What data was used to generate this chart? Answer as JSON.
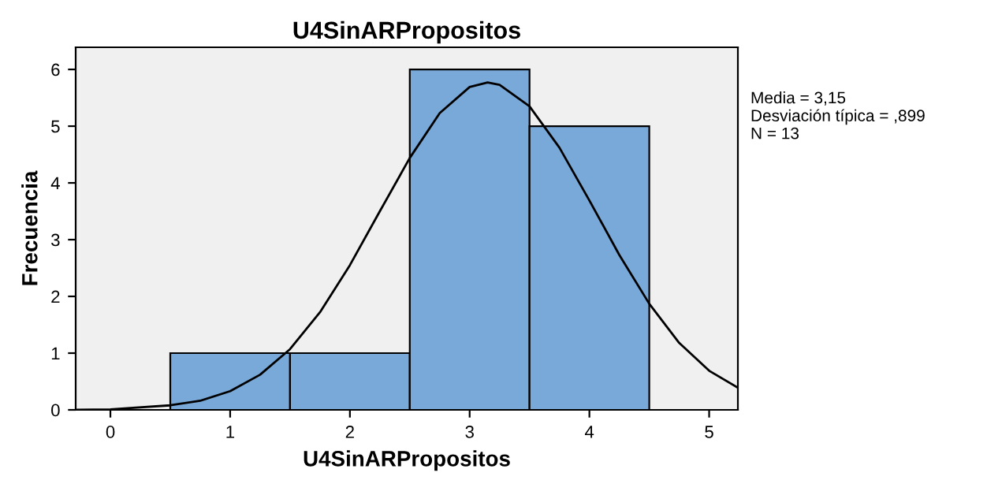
{
  "chart_data": {
    "type": "histogram",
    "title": "U4SinARPropositos",
    "xlabel": "U4SinARPropositos",
    "ylabel": "Frecuencia",
    "series": [
      {
        "bins": [
          0.5,
          1.5,
          2.5,
          3.5,
          4.5
        ],
        "values": [
          1,
          1,
          6,
          5
        ],
        "color": "#79a9d9"
      },
      {
        "type": "line",
        "color": "#000000",
        "x": [
          -0.29,
          0,
          0.5,
          0.75,
          1,
          1.25,
          1.5,
          1.75,
          2,
          2.25,
          2.5,
          2.75,
          3,
          3.15,
          3.25,
          3.5,
          3.75,
          4,
          4.25,
          4.5,
          4.75,
          5,
          5.24
        ],
        "values": [
          0,
          0.01,
          0.08,
          0.16,
          0.33,
          0.62,
          1.07,
          1.72,
          2.55,
          3.5,
          4.44,
          5.23,
          5.69,
          5.77,
          5.73,
          5.35,
          4.62,
          3.69,
          2.73,
          1.87,
          1.18,
          0.69,
          0.39
        ]
      }
    ],
    "xlim": [
      -0.29,
      5.24
    ],
    "xticks": [
      0,
      1,
      2,
      3,
      4,
      5
    ],
    "ylim": [
      0,
      6.39
    ],
    "yticks": [
      0,
      1,
      2,
      3,
      4,
      5,
      6
    ],
    "grid": false,
    "annotations": [
      "Media = 3,15\nDesviación típica = ,899\nN = 13"
    ]
  }
}
